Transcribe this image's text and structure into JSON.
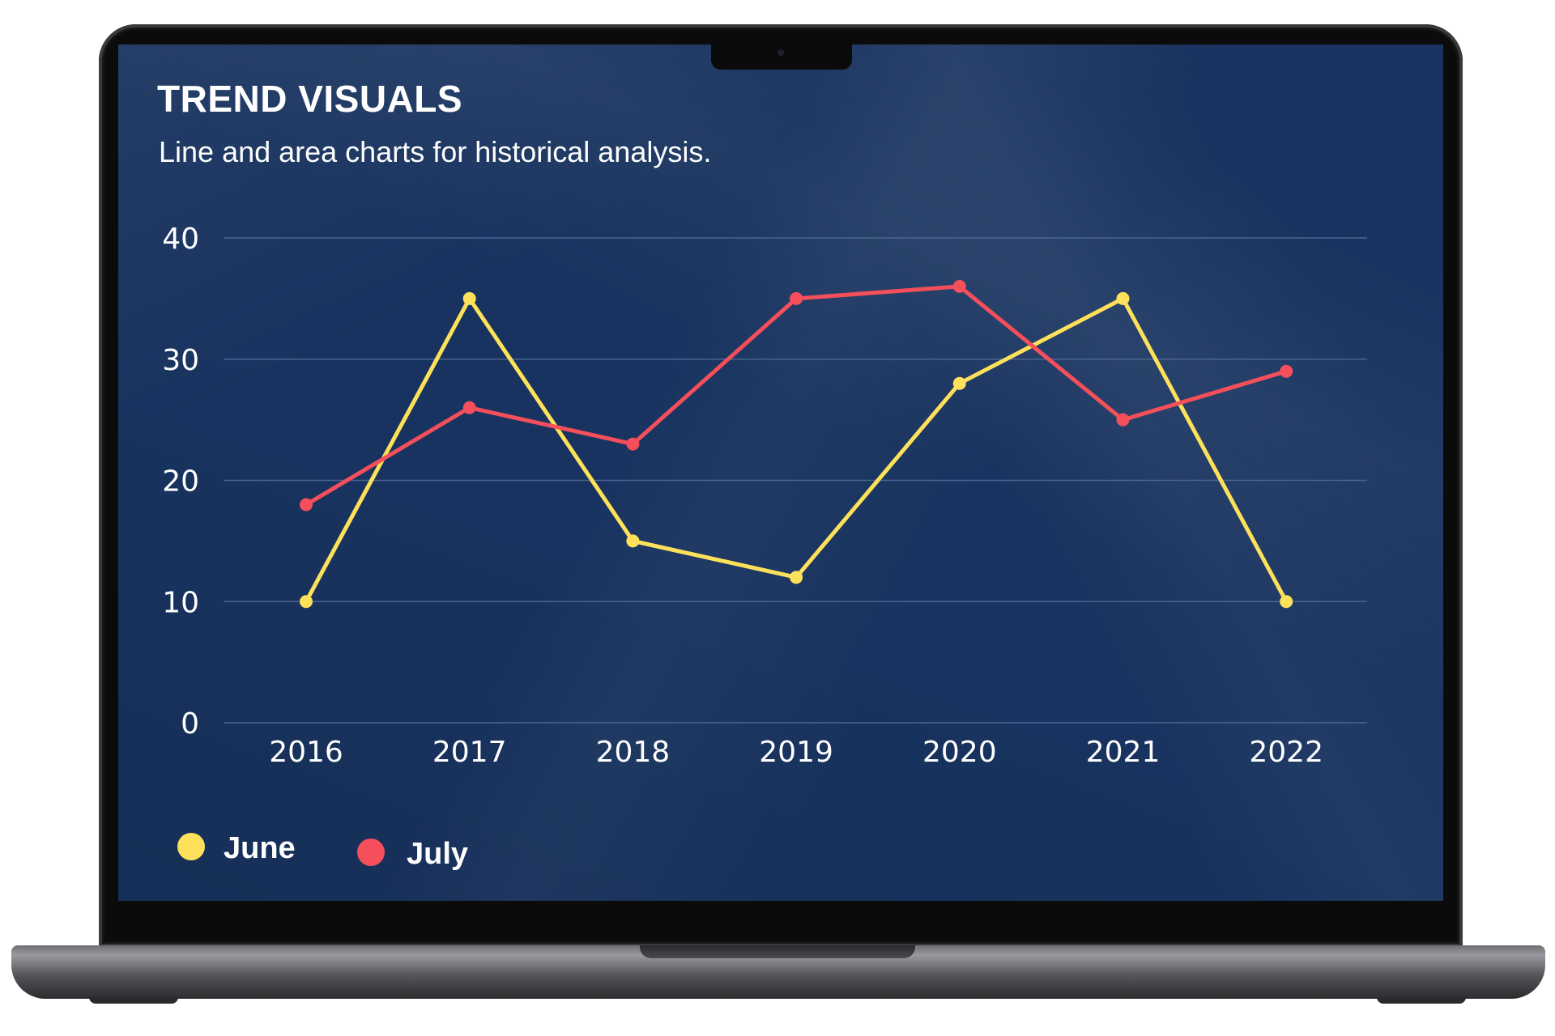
{
  "header": {
    "title": "TREND VISUALS",
    "subtitle": "Line and area charts for historical analysis."
  },
  "colors": {
    "background": "#18335f",
    "gridline": "#4a6490",
    "june": "#fde15a",
    "july": "#f44f5b",
    "text": "#ffffff"
  },
  "chart_data": {
    "type": "line",
    "categories": [
      "2016",
      "2017",
      "2018",
      "2019",
      "2020",
      "2021",
      "2022"
    ],
    "ylim": [
      0,
      40
    ],
    "yticks": [
      0,
      10,
      20,
      30,
      40
    ],
    "grid": true,
    "legend_position": "bottom-left",
    "series": [
      {
        "name": "June",
        "color": "#fde15a",
        "values": [
          10,
          35,
          15,
          12,
          28,
          35,
          10
        ]
      },
      {
        "name": "July",
        "color": "#f44f5b",
        "values": [
          18,
          26,
          23,
          35,
          36,
          25,
          29
        ]
      }
    ]
  }
}
